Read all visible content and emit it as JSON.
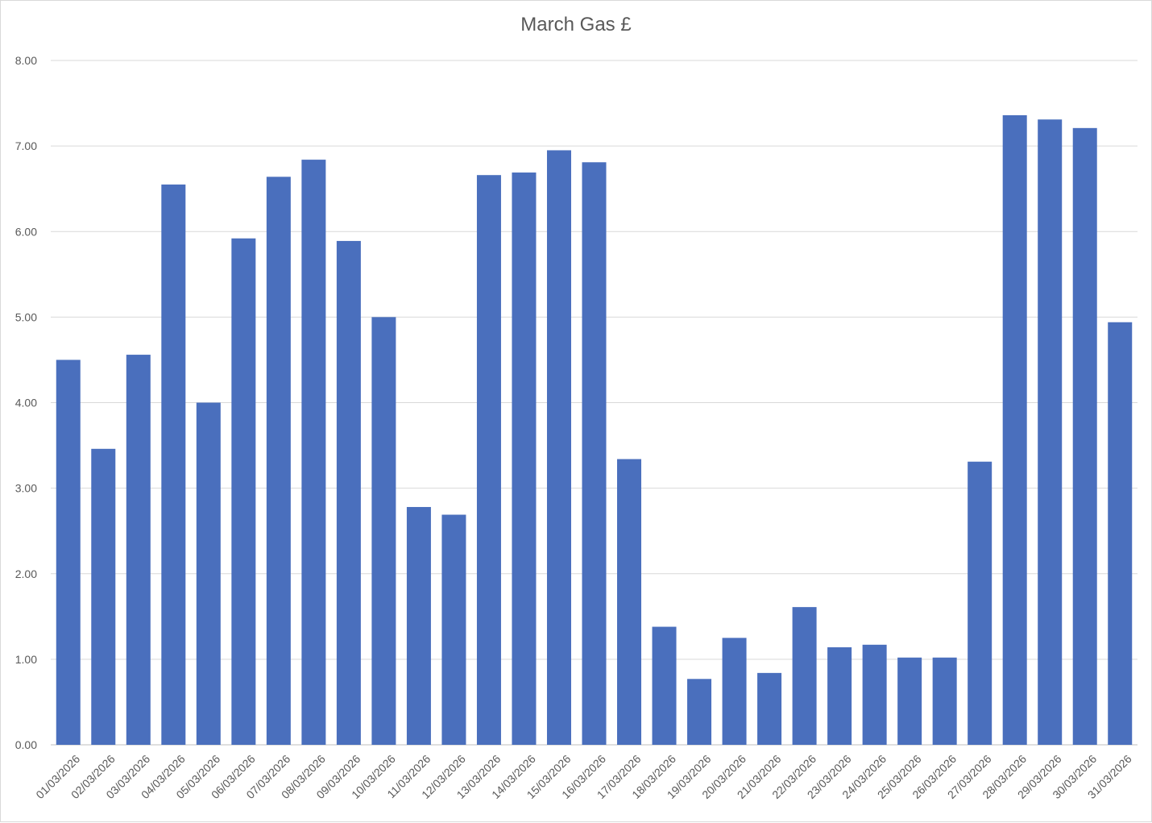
{
  "chart_data": {
    "type": "bar",
    "title": "March Gas £",
    "xlabel": "",
    "ylabel": "",
    "ylim": [
      0,
      8
    ],
    "yticks": [
      "0.00",
      "1.00",
      "2.00",
      "3.00",
      "4.00",
      "5.00",
      "6.00",
      "7.00",
      "8.00"
    ],
    "grid": true,
    "legend": "none",
    "categories": [
      "01/03/2026",
      "02/03/2026",
      "03/03/2026",
      "04/03/2026",
      "05/03/2026",
      "06/03/2026",
      "07/03/2026",
      "08/03/2026",
      "09/03/2026",
      "10/03/2026",
      "11/03/2026",
      "12/03/2026",
      "13/03/2026",
      "14/03/2026",
      "15/03/2026",
      "16/03/2026",
      "17/03/2026",
      "18/03/2026",
      "19/03/2026",
      "20/03/2026",
      "21/03/2026",
      "22/03/2026",
      "23/03/2026",
      "24/03/2026",
      "25/03/2026",
      "26/03/2026",
      "27/03/2026",
      "28/03/2026",
      "29/03/2026",
      "30/03/2026",
      "31/03/2026"
    ],
    "values": [
      4.5,
      3.46,
      4.56,
      6.55,
      4.0,
      5.92,
      6.64,
      6.84,
      5.89,
      5.0,
      2.78,
      2.69,
      6.66,
      6.69,
      6.95,
      6.81,
      3.34,
      1.38,
      0.77,
      1.25,
      0.84,
      1.61,
      1.14,
      1.17,
      1.02,
      1.02,
      3.31,
      7.36,
      7.31,
      7.21,
      4.94
    ],
    "colors": {
      "bar": "#4a6fbd",
      "grid": "#d9d9d9",
      "axis": "#bfbfbf",
      "text": "#595959"
    }
  }
}
